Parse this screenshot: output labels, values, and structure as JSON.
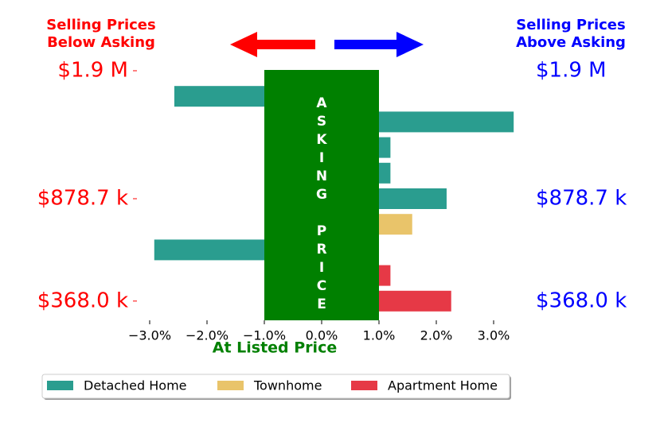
{
  "chart_data": {
    "type": "barh",
    "left_header": [
      "Selling Prices",
      "Below Asking"
    ],
    "right_header": [
      "Selling Prices",
      "Above Asking"
    ],
    "band_label": "ASKING PRICE",
    "band_range": [
      -1,
      1
    ],
    "band_color": "#008000",
    "xlabel": "At Listed Price",
    "categories": [
      "$1.9 M",
      null,
      null,
      null,
      null,
      "$878.7 k",
      null,
      null,
      null,
      "$368.0 k"
    ],
    "series": [
      {
        "name": "Detached Home",
        "color": "#2a9d8f",
        "values": [
          null,
          -2.57,
          3.35,
          1.2,
          1.2,
          2.18,
          null,
          -2.92,
          null,
          null
        ]
      },
      {
        "name": "Townhome",
        "color": "#e9c46a",
        "values": [
          null,
          null,
          null,
          null,
          null,
          null,
          1.58,
          null,
          null,
          null
        ]
      },
      {
        "name": "Apartment Home",
        "color": "#e63946",
        "values": [
          null,
          null,
          null,
          null,
          null,
          null,
          null,
          null,
          1.2,
          2.26
        ]
      }
    ],
    "xlim": [
      -3.3,
      3.4
    ],
    "xticks": [
      {
        "value": -3,
        "label": "−3.0%"
      },
      {
        "value": -2,
        "label": "−2.0%"
      },
      {
        "value": -1,
        "label": "−1.0%"
      },
      {
        "value": 0,
        "label": "0.0%"
      },
      {
        "value": 1,
        "label": "1.0%"
      },
      {
        "value": 2,
        "label": "2.0%"
      },
      {
        "value": 3,
        "label": "3.0%"
      }
    ],
    "legend": "bottom"
  }
}
